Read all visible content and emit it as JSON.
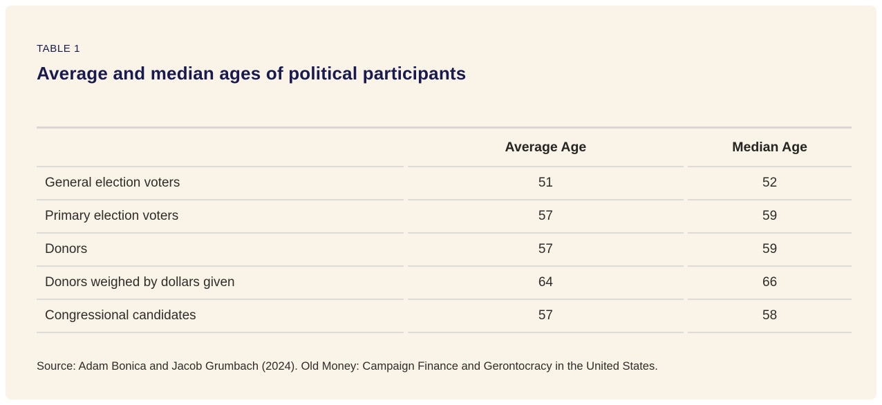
{
  "panel": {
    "background_color": "#f9f3e8",
    "accent_color": "#191a4d"
  },
  "eyebrow": "TABLE 1",
  "title": "Average and median ages of political participants",
  "table": {
    "columns": [
      "",
      "Average Age",
      "Median Age"
    ],
    "rows": [
      {
        "label": "General election voters",
        "average_age": "51",
        "median_age": "52"
      },
      {
        "label": "Primary election voters",
        "average_age": "57",
        "median_age": "59"
      },
      {
        "label": "Donors",
        "average_age": "57",
        "median_age": "59"
      },
      {
        "label": "Donors weighed by dollars given",
        "average_age": "64",
        "median_age": "66"
      },
      {
        "label": "Congressional candidates",
        "average_age": "57",
        "median_age": "58"
      }
    ]
  },
  "source": "Source: Adam Bonica and Jacob Grumbach (2024). Old Money: Campaign Finance and Gerontocracy in the United States.",
  "chart_data": {
    "type": "table",
    "title": "Average and median ages of political participants",
    "subtitle": "TABLE 1",
    "categories": [
      "General election voters",
      "Primary election voters",
      "Donors",
      "Donors weighed by dollars given",
      "Congressional candidates"
    ],
    "series": [
      {
        "name": "Average Age",
        "values": [
          51,
          57,
          57,
          64,
          57
        ]
      },
      {
        "name": "Median Age",
        "values": [
          52,
          59,
          59,
          66,
          58
        ]
      }
    ],
    "source": "Source: Adam Bonica and Jacob Grumbach (2024). Old Money: Campaign Finance and Gerontocracy in the United States."
  }
}
